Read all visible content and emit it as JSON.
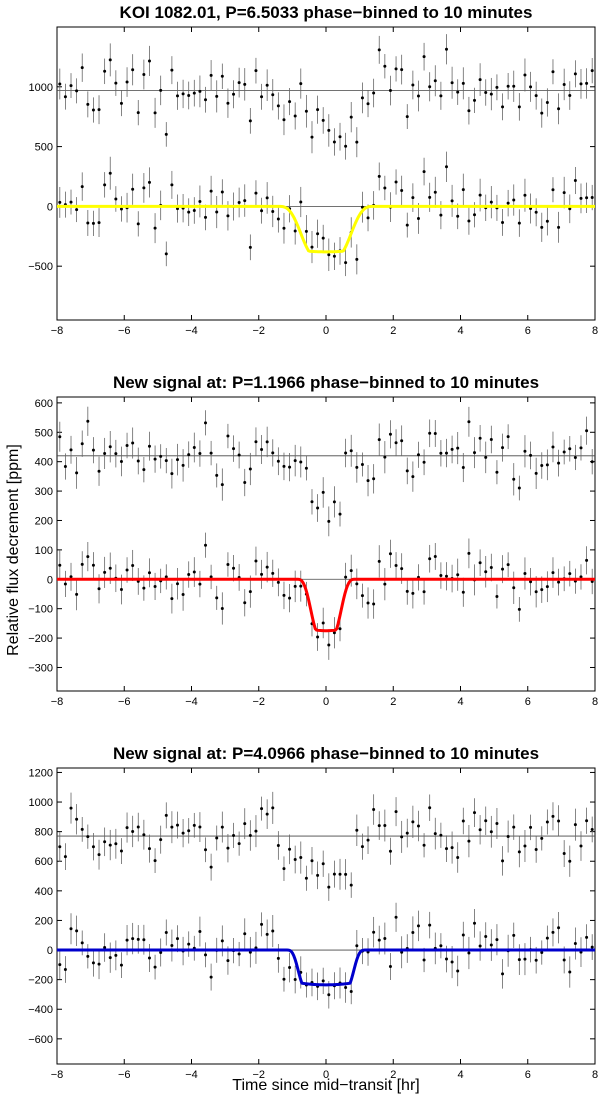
{
  "figure": {
    "ylabel": "Relative flux decrement [ppm]",
    "xlabel": "Time since mid−transit [hr]"
  },
  "chart_data": [
    {
      "type": "scatter",
      "title": "KOI 1082.01, P=6.5033 phase−binned to 10 minutes",
      "xlim": [
        -8,
        8
      ],
      "ylim": [
        -950,
        1500
      ],
      "xticks": [
        -8,
        -6,
        -4,
        -2,
        0,
        2,
        4,
        6,
        8
      ],
      "yticks": [
        -500,
        0,
        500,
        1000
      ],
      "offset": 970,
      "grid": false,
      "model_color": "#ffff00",
      "model": {
        "depth": 380,
        "t_full": 0.5,
        "t_total": 1.4
      },
      "scatter": 120,
      "errbar": 120,
      "series": [
        {
          "x": [
            -7.5,
            -6.5,
            -5.5,
            -4.5,
            -3.5,
            -2.5,
            -1.5,
            -0.5,
            0.5,
            1.5,
            2.5,
            3.5,
            4.5,
            5.5,
            6.5,
            7.5
          ],
          "y_detrended": [
            20,
            -10,
            60,
            -30,
            40,
            10,
            -20,
            -340,
            -390,
            -10,
            20,
            -30,
            50,
            10,
            -20,
            30
          ]
        }
      ]
    },
    {
      "type": "scatter",
      "title": "New signal at: P=1.1966 phase−binned to 10 minutes",
      "xlim": [
        -8,
        8
      ],
      "ylim": [
        -380,
        620
      ],
      "xticks": [
        -8,
        -6,
        -4,
        -2,
        0,
        2,
        4,
        6,
        8
      ],
      "yticks": [
        -300,
        -200,
        -100,
        0,
        100,
        200,
        300,
        400,
        500,
        600
      ],
      "offset": 420,
      "grid": false,
      "model_color": "#ff0000",
      "model": {
        "depth": 175,
        "t_full": 0.3,
        "t_total": 0.85
      },
      "scatter": 45,
      "errbar": 48,
      "series": [
        {
          "x": [
            -7.5,
            -6.5,
            -5.5,
            -4.5,
            -3.5,
            -2.5,
            -1.5,
            -0.5,
            0.5,
            1.5,
            2.5,
            3.5,
            4.5,
            5.5,
            6.5,
            7.5
          ],
          "y_detrended": [
            10,
            -20,
            30,
            0,
            60,
            20,
            -10,
            -150,
            -170,
            0,
            30,
            -10,
            40,
            10,
            -20,
            20
          ]
        }
      ]
    },
    {
      "type": "scatter",
      "title": "New signal at: P=4.0966 phase−binned to 10 minutes",
      "xlim": [
        -8,
        8
      ],
      "ylim": [
        -770,
        1230
      ],
      "xticks": [
        -8,
        -6,
        -4,
        -2,
        0,
        2,
        4,
        6,
        8
      ],
      "yticks": [
        -600,
        -400,
        -200,
        0,
        200,
        400,
        600,
        800,
        1000,
        1200
      ],
      "offset": 770,
      "grid": false,
      "model_color": "#0000cc",
      "model": {
        "depth": 235,
        "t_full": 0.7,
        "t_total": 1.15
      },
      "scatter": 95,
      "errbar": 95,
      "series": [
        {
          "x": [
            -7.5,
            -6.5,
            -5.5,
            -4.5,
            -3.5,
            -2.5,
            -1.5,
            -0.5,
            0.5,
            1.5,
            2.5,
            3.5,
            4.5,
            5.5,
            6.5,
            7.5
          ],
          "y_detrended": [
            30,
            -20,
            40,
            10,
            80,
            0,
            -20,
            -240,
            -230,
            20,
            40,
            -10,
            50,
            30,
            -10,
            40
          ]
        }
      ]
    }
  ]
}
